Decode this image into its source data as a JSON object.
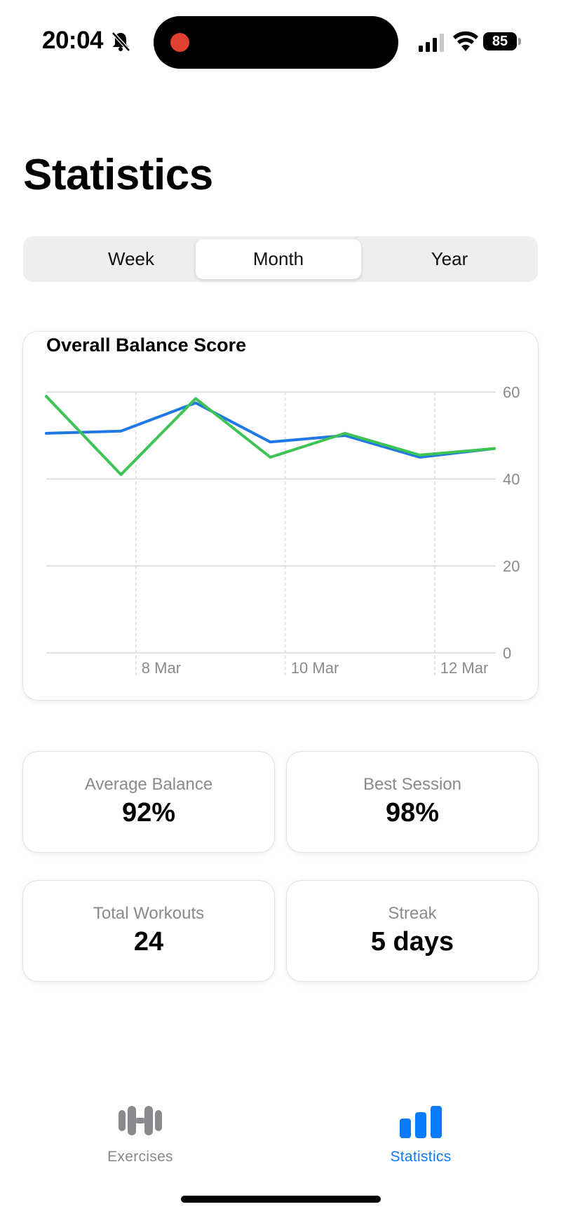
{
  "status_bar": {
    "time": "20:04",
    "battery": "85",
    "icons": [
      "bell-slash-icon",
      "signal-icon",
      "wifi-icon",
      "battery-icon"
    ],
    "recording_color": "#E0402F"
  },
  "page": {
    "title": "Statistics"
  },
  "segments": [
    {
      "label": "Week",
      "selected": false
    },
    {
      "label": "Month",
      "selected": true
    },
    {
      "label": "Year",
      "selected": false
    }
  ],
  "chart_data": {
    "type": "line",
    "title": "Overall Balance Score",
    "x_tick_labels": [
      "8 Mar",
      "10 Mar",
      "12 Mar"
    ],
    "y_ticks": [
      0,
      20,
      40,
      60
    ],
    "ylim": [
      0,
      60
    ],
    "grid": true,
    "series": [
      {
        "color": "#1F78E5",
        "x": [
          0,
          1,
          2,
          3,
          4,
          5,
          6
        ],
        "values": [
          50.5,
          51,
          57.5,
          48.5,
          50,
          45,
          47
        ]
      },
      {
        "color": "#3DC356",
        "x": [
          0,
          1,
          2,
          3,
          4,
          5,
          6
        ],
        "values": [
          59,
          41,
          58.5,
          45,
          50.5,
          45.5,
          47
        ]
      }
    ],
    "x_tick_positions": [
      1.2,
      3.2,
      5.2
    ],
    "xlim": [
      0,
      6
    ]
  },
  "stats": [
    {
      "label": "Average Balance",
      "value": "92%"
    },
    {
      "label": "Best Session",
      "value": "98%"
    },
    {
      "label": "Total Workouts",
      "value": "24"
    },
    {
      "label": "Streak",
      "value": "5 days"
    }
  ],
  "tabs": [
    {
      "label": "Exercises",
      "icon": "dumbbell-icon",
      "active": false,
      "color": "#8A8A8E"
    },
    {
      "label": "Statistics",
      "icon": "bar-chart-icon",
      "active": true,
      "color": "#0A7AFF"
    }
  ]
}
